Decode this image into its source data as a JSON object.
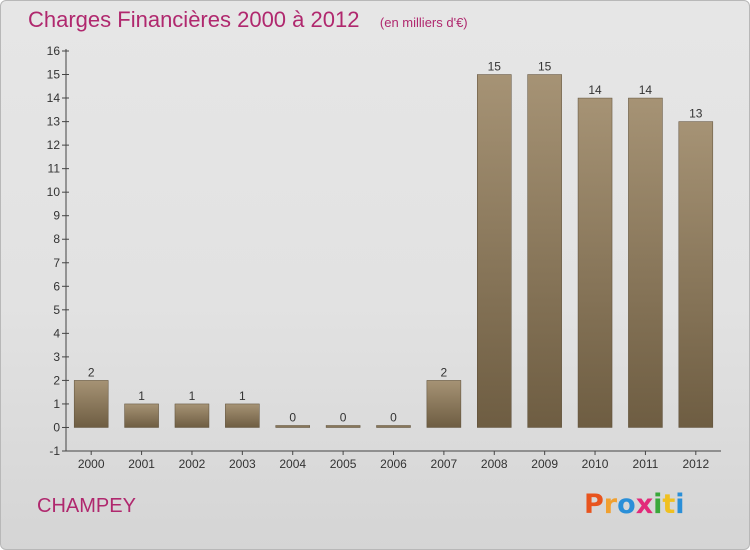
{
  "title": "Charges Financières 2000 à 2012",
  "unit": "(en milliers d'€)",
  "commune": "CHAMPEY",
  "logo": {
    "text": "Proxiti",
    "colors": [
      "#e8541e",
      "#f0a030",
      "#2a8fd8",
      "#e22a7a",
      "#3aa83a",
      "#f0c020",
      "#2a8fd8"
    ]
  },
  "colors": {
    "title": "#b0286e",
    "bar_top": "#a69375",
    "bar_bottom": "#6e5d42",
    "axis": "#444444"
  },
  "chart_data": {
    "type": "bar",
    "categories": [
      "2000",
      "2001",
      "2002",
      "2003",
      "2004",
      "2005",
      "2006",
      "2007",
      "2008",
      "2009",
      "2010",
      "2011",
      "2012"
    ],
    "values": [
      2,
      1,
      1,
      1,
      0,
      0,
      0,
      2,
      15,
      15,
      14,
      14,
      13
    ],
    "ylim": [
      -1,
      16
    ],
    "yticks": [
      -1,
      0,
      1,
      2,
      3,
      4,
      5,
      6,
      7,
      8,
      9,
      10,
      11,
      12,
      13,
      14,
      15,
      16
    ],
    "grid": false,
    "legend": "none"
  }
}
